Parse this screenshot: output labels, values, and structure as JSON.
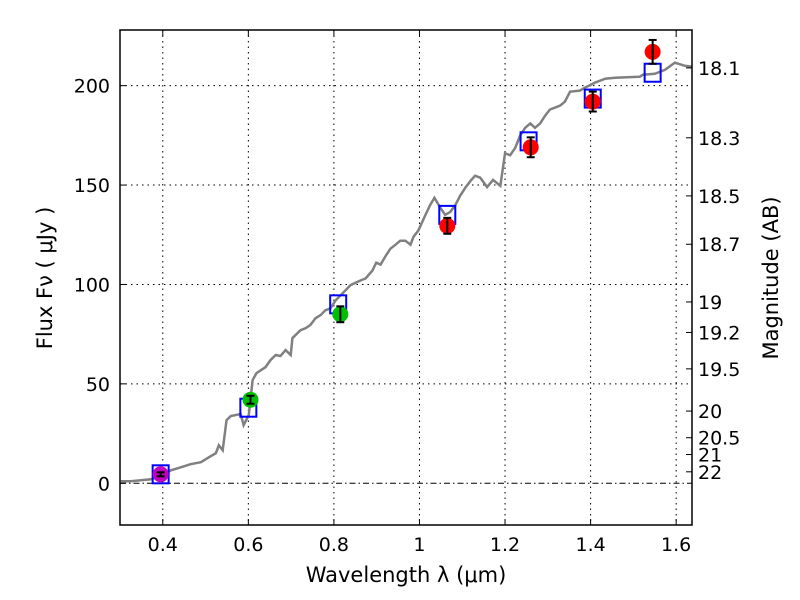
{
  "chart_data": {
    "type": "scatter",
    "xlabel": "Wavelength  λ (μm)",
    "ylabel": "Flux  Fν  ( μJy )",
    "ylabel_right": "Magnitude (AB)",
    "xlim": [
      0.3,
      1.637
    ],
    "ylim": [
      -21,
      228
    ],
    "grid": true,
    "xticks": [
      0.4,
      0.6,
      0.8,
      1,
      1.2,
      1.4,
      1.6
    ],
    "xtick_labels": [
      "0.4",
      "0.6",
      "0.8",
      "1",
      "1.2",
      "1.4",
      "1.6"
    ],
    "yticks": [
      0,
      50,
      100,
      150,
      200
    ],
    "ytick_labels": [
      "0",
      "50",
      "100",
      "150",
      "200"
    ],
    "mag_ticks": [
      18.1,
      18.3,
      18.5,
      18.7,
      19,
      19.2,
      19.5,
      20,
      20.5,
      21,
      22
    ],
    "mag_tick_labels": [
      "18.1",
      "18.3",
      "18.5",
      "18.7",
      "19",
      "19.2",
      "19.5",
      "20",
      "20.5",
      "21",
      "22"
    ],
    "colors": {
      "spectrum": "#808080",
      "model": "#0000ff",
      "purple": "#bf00bf",
      "green": "#00bf00",
      "red": "#ff0000"
    },
    "spectrum": [
      [
        0.302,
        1
      ],
      [
        0.325,
        1
      ],
      [
        0.349,
        1.5
      ],
      [
        0.372,
        2
      ],
      [
        0.395,
        3.5
      ],
      [
        0.419,
        6.5
      ],
      [
        0.442,
        8
      ],
      [
        0.465,
        9.6
      ],
      [
        0.489,
        10.6
      ],
      [
        0.512,
        13.6
      ],
      [
        0.524,
        15.1
      ],
      [
        0.531,
        19.1
      ],
      [
        0.54,
        16.6
      ],
      [
        0.549,
        31.7
      ],
      [
        0.559,
        33.8
      ],
      [
        0.582,
        34.8
      ],
      [
        0.589,
        29.2
      ],
      [
        0.601,
        34.3
      ],
      [
        0.61,
        51.9
      ],
      [
        0.619,
        55.4
      ],
      [
        0.64,
        58.4
      ],
      [
        0.652,
        62
      ],
      [
        0.664,
        64.5
      ],
      [
        0.675,
        64
      ],
      [
        0.687,
        67
      ],
      [
        0.699,
        64.5
      ],
      [
        0.703,
        73
      ],
      [
        0.722,
        77
      ],
      [
        0.734,
        78
      ],
      [
        0.745,
        79.6
      ],
      [
        0.757,
        83
      ],
      [
        0.769,
        84.6
      ],
      [
        0.78,
        87
      ],
      [
        0.792,
        88
      ],
      [
        0.804,
        92
      ],
      [
        0.827,
        97
      ],
      [
        0.839,
        99.7
      ],
      [
        0.862,
        102
      ],
      [
        0.874,
        103
      ],
      [
        0.89,
        107
      ],
      [
        0.899,
        111
      ],
      [
        0.909,
        110
      ],
      [
        0.92,
        114
      ],
      [
        0.932,
        118
      ],
      [
        0.944,
        120
      ],
      [
        0.955,
        122
      ],
      [
        0.967,
        122
      ],
      [
        0.979,
        120
      ],
      [
        0.986,
        124
      ],
      [
        0.997,
        127
      ],
      [
        1.014,
        135
      ],
      [
        1.025,
        140
      ],
      [
        1.035,
        143.6
      ],
      [
        1.049,
        138.5
      ],
      [
        1.06,
        135
      ],
      [
        1.072,
        136.5
      ],
      [
        1.084,
        140
      ],
      [
        1.095,
        144.6
      ],
      [
        1.107,
        148.6
      ],
      [
        1.119,
        152
      ],
      [
        1.13,
        154.7
      ],
      [
        1.142,
        153.7
      ],
      [
        1.158,
        149
      ],
      [
        1.172,
        152.6
      ],
      [
        1.189,
        149.6
      ],
      [
        1.2,
        166
      ],
      [
        1.212,
        165
      ],
      [
        1.224,
        168.8
      ],
      [
        1.235,
        174.8
      ],
      [
        1.247,
        178.8
      ],
      [
        1.259,
        181
      ],
      [
        1.27,
        178.8
      ],
      [
        1.282,
        181
      ],
      [
        1.294,
        185
      ],
      [
        1.305,
        188
      ],
      [
        1.317,
        189
      ],
      [
        1.329,
        190
      ],
      [
        1.34,
        192
      ],
      [
        1.352,
        197
      ],
      [
        1.375,
        197.5
      ],
      [
        1.387,
        199
      ],
      [
        1.41,
        201.5
      ],
      [
        1.434,
        203.5
      ],
      [
        1.457,
        204
      ],
      [
        1.515,
        204.5
      ],
      [
        1.522,
        205.5
      ],
      [
        1.55,
        206
      ],
      [
        1.574,
        208
      ],
      [
        1.597,
        211.6
      ],
      [
        1.62,
        210
      ],
      [
        1.637,
        209.6
      ]
    ],
    "model_points": [
      {
        "x": 0.395,
        "y": 4.5
      },
      {
        "x": 0.6,
        "y": 38
      },
      {
        "x": 0.81,
        "y": 90
      },
      {
        "x": 1.065,
        "y": 135
      },
      {
        "x": 1.255,
        "y": 172
      },
      {
        "x": 1.405,
        "y": 193.5
      },
      {
        "x": 1.545,
        "y": 206.5
      }
    ],
    "observed_points": [
      {
        "x": 0.395,
        "y": 4.5,
        "err": 1,
        "color": "purple"
      },
      {
        "x": 0.605,
        "y": 42,
        "err": 2,
        "color": "green"
      },
      {
        "x": 0.815,
        "y": 85,
        "err": 4,
        "color": "green"
      },
      {
        "x": 1.065,
        "y": 129.5,
        "err": 4,
        "color": "red"
      },
      {
        "x": 1.26,
        "y": 169,
        "err": 5,
        "color": "red"
      },
      {
        "x": 1.405,
        "y": 192,
        "err": 5,
        "color": "red"
      },
      {
        "x": 1.545,
        "y": 217,
        "err": 6,
        "color": "red"
      }
    ]
  }
}
